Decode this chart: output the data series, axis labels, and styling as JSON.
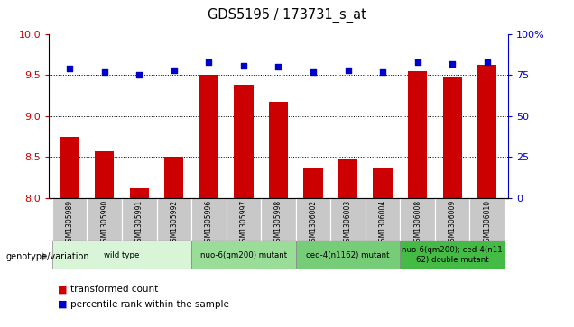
{
  "title": "GDS5195 / 173731_s_at",
  "samples": [
    "GSM1305989",
    "GSM1305990",
    "GSM1305991",
    "GSM1305992",
    "GSM1305996",
    "GSM1305997",
    "GSM1305998",
    "GSM1306002",
    "GSM1306003",
    "GSM1306004",
    "GSM1306008",
    "GSM1306009",
    "GSM1306010"
  ],
  "bar_values": [
    8.75,
    8.57,
    8.12,
    8.5,
    9.5,
    9.38,
    9.18,
    8.37,
    8.47,
    8.37,
    9.55,
    9.47,
    9.63
  ],
  "dot_values": [
    79,
    77,
    75,
    78,
    83,
    81,
    80,
    77,
    78,
    77,
    83,
    82,
    83
  ],
  "bar_color": "#cc0000",
  "dot_color": "#0000cc",
  "ylim_left": [
    8.0,
    10.0
  ],
  "ylim_right": [
    0,
    100
  ],
  "yticks_left": [
    8.0,
    8.5,
    9.0,
    9.5,
    10.0
  ],
  "yticks_right": [
    0,
    25,
    50,
    75,
    100
  ],
  "ytick_labels_right": [
    "0",
    "25",
    "50",
    "75",
    "100%"
  ],
  "hlines": [
    8.5,
    9.0,
    9.5
  ],
  "groups": [
    {
      "label": "wild type",
      "start": 0,
      "end": 3,
      "color": "#d8f5d8"
    },
    {
      "label": "nuo-6(qm200) mutant",
      "start": 4,
      "end": 6,
      "color": "#99dd99"
    },
    {
      "label": "ced-4(n1162) mutant",
      "start": 7,
      "end": 9,
      "color": "#77cc77"
    },
    {
      "label": "nuo-6(qm200); ced-4(n11\n62) double mutant",
      "start": 10,
      "end": 12,
      "color": "#44bb44"
    }
  ],
  "genotype_label": "genotype/variation",
  "legend_bar": "transformed count",
  "legend_dot": "percentile rank within the sample",
  "bar_width": 0.55,
  "plot_bg": "#ffffff",
  "left_tick_color": "#cc0000",
  "right_tick_color": "#0000cc",
  "cell_bg": "#cccccc",
  "cell_bg_alt": "#d8d8d8"
}
